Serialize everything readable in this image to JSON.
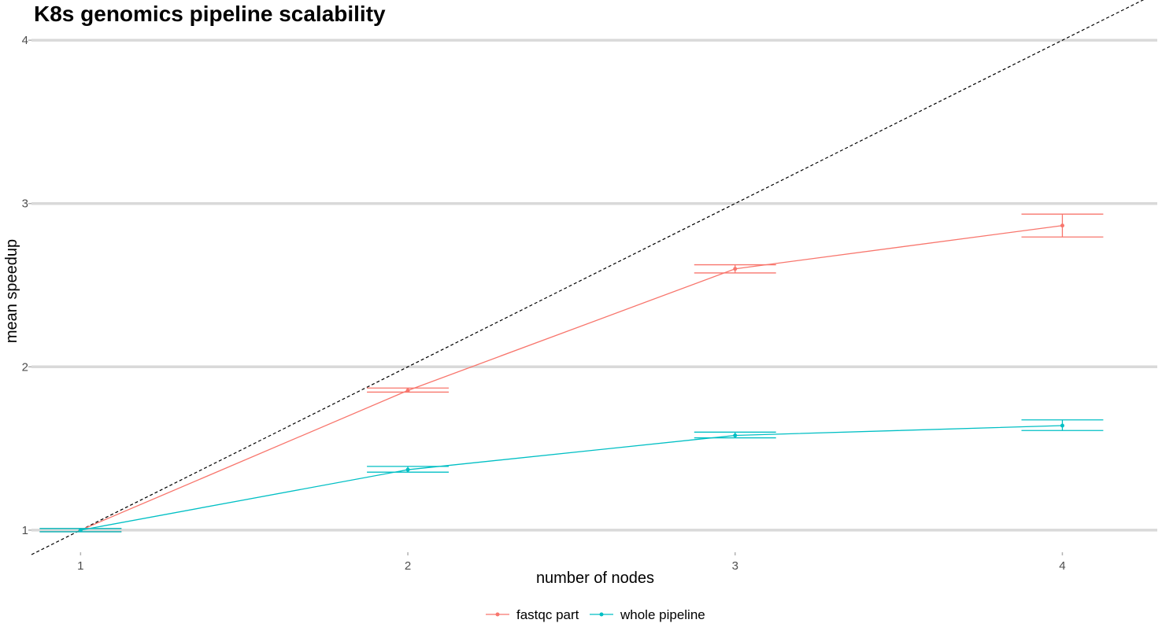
{
  "chart_data": {
    "type": "line",
    "title": "K8s genomics pipeline scalability",
    "xlabel": "number of nodes",
    "ylabel": "mean speedup",
    "x": [
      1,
      2,
      3,
      4
    ],
    "x_tick_labels": [
      "1",
      "2",
      "3",
      "4"
    ],
    "y_ticks": [
      1,
      2,
      3,
      4
    ],
    "y_tick_labels": [
      "1",
      "2",
      "3",
      "4"
    ],
    "xlim": [
      0.85,
      4.29
    ],
    "ylim": [
      0.85,
      4.15
    ],
    "grid": "horizontal major lines",
    "legend": "bottom",
    "reference_line": {
      "style": "dashed",
      "color": "#000000",
      "slope": 1,
      "intercept": 0
    },
    "series": [
      {
        "name": "fastqc part",
        "color": "#F8766D",
        "values": [
          1.0,
          1.855,
          2.6,
          2.865
        ],
        "err_low": [
          0.99,
          1.845,
          2.575,
          2.795
        ],
        "err_high": [
          1.01,
          1.87,
          2.625,
          2.935
        ]
      },
      {
        "name": "whole pipeline",
        "color": "#00BFC4",
        "values": [
          1.0,
          1.37,
          1.58,
          1.64
        ],
        "err_low": [
          0.99,
          1.355,
          1.565,
          1.61
        ],
        "err_high": [
          1.01,
          1.39,
          1.6,
          1.675
        ]
      }
    ]
  }
}
